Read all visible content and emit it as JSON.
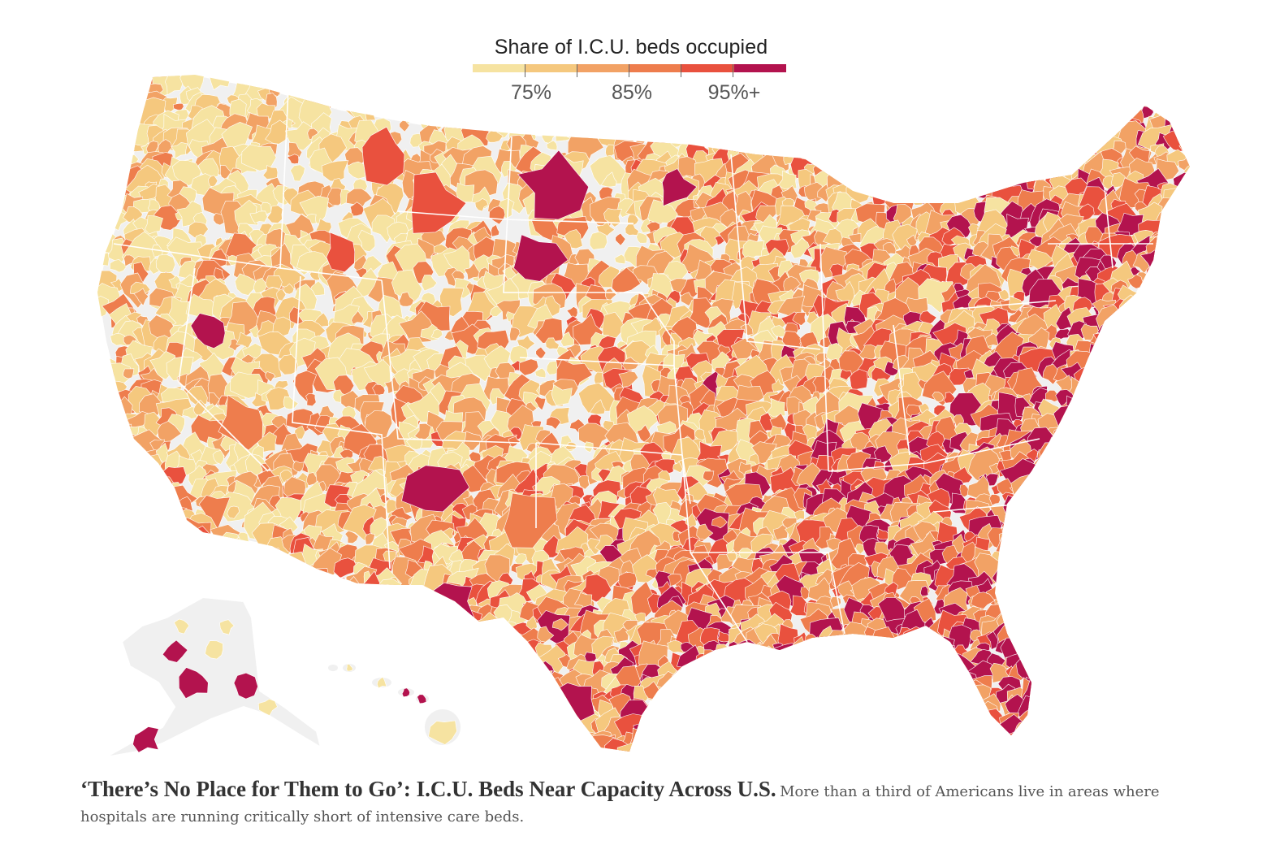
{
  "legend": {
    "title": "Share of I.C.U. beds occupied",
    "labels": [
      "75%",
      "85%",
      "95%+"
    ],
    "colors": [
      "#f6e3a1",
      "#f5c87e",
      "#f2a265",
      "#ee7d4d",
      "#e9513e",
      "#b3134e"
    ]
  },
  "map": {
    "land_color": "#f0f0f0",
    "border_color": "#ffffff",
    "regions": [
      "contiguous-us",
      "alaska",
      "hawaii"
    ]
  },
  "caption": {
    "headline": "‘There’s No Place for Them to Go’: I.C.U. Beds Near Capacity Across U.S.",
    "summary": "More than a third of Americans live in areas where hospitals are running critically short of intensive care beds."
  }
}
